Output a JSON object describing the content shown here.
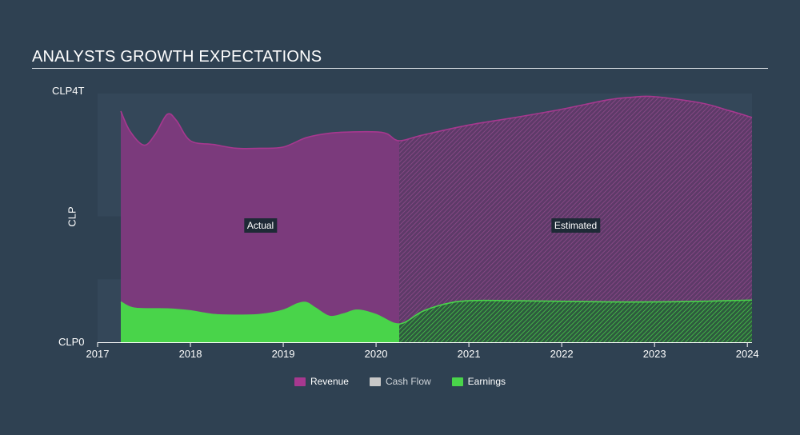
{
  "title": "ANALYSTS GROWTH EXPECTATIONS",
  "chart_data": {
    "type": "area",
    "currency": "CLP",
    "ylabel": "CLP",
    "ytick_labels": {
      "max": "CLP4T",
      "min": "CLP0"
    },
    "ylim": [
      0,
      4
    ],
    "xlim": [
      2017.0,
      2024.05
    ],
    "x_ticks": [
      {
        "value": 2017,
        "label": "2017"
      },
      {
        "value": 2018,
        "label": "2018"
      },
      {
        "value": 2019,
        "label": "2019"
      },
      {
        "value": 2020,
        "label": "2020"
      },
      {
        "value": 2021,
        "label": "2021"
      },
      {
        "value": 2022,
        "label": "2022"
      },
      {
        "value": 2023,
        "label": "2023"
      },
      {
        "value": 2024,
        "label": "2024"
      }
    ],
    "actual_end_x": 2020.25,
    "regions": {
      "actual": "Actual",
      "estimated": "Estimated"
    },
    "series": [
      {
        "name": "Revenue",
        "color": "#a7388f",
        "points": [
          [
            2017.25,
            3.67
          ],
          [
            2017.35,
            3.35
          ],
          [
            2017.5,
            3.13
          ],
          [
            2017.62,
            3.3
          ],
          [
            2017.75,
            3.62
          ],
          [
            2017.85,
            3.52
          ],
          [
            2018.0,
            3.2
          ],
          [
            2018.25,
            3.14
          ],
          [
            2018.5,
            3.08
          ],
          [
            2018.75,
            3.08
          ],
          [
            2019.0,
            3.1
          ],
          [
            2019.25,
            3.25
          ],
          [
            2019.5,
            3.32
          ],
          [
            2019.75,
            3.34
          ],
          [
            2020.0,
            3.34
          ],
          [
            2020.12,
            3.31
          ],
          [
            2020.25,
            3.2
          ],
          [
            2020.5,
            3.29
          ],
          [
            2021.0,
            3.45
          ],
          [
            2021.5,
            3.57
          ],
          [
            2022.0,
            3.7
          ],
          [
            2022.5,
            3.85
          ],
          [
            2022.75,
            3.89
          ],
          [
            2023.0,
            3.9
          ],
          [
            2023.5,
            3.8
          ],
          [
            2023.8,
            3.68
          ],
          [
            2024.05,
            3.57
          ]
        ]
      },
      {
        "name": "Cash Flow",
        "color": "#c8c8c8",
        "points": []
      },
      {
        "name": "Earnings",
        "color": "#49d44a",
        "points": [
          [
            2017.25,
            0.64
          ],
          [
            2017.4,
            0.54
          ],
          [
            2017.75,
            0.53
          ],
          [
            2018.0,
            0.5
          ],
          [
            2018.25,
            0.44
          ],
          [
            2018.5,
            0.43
          ],
          [
            2018.75,
            0.44
          ],
          [
            2019.0,
            0.51
          ],
          [
            2019.15,
            0.61
          ],
          [
            2019.25,
            0.63
          ],
          [
            2019.35,
            0.54
          ],
          [
            2019.5,
            0.41
          ],
          [
            2019.65,
            0.45
          ],
          [
            2019.8,
            0.51
          ],
          [
            2020.0,
            0.44
          ],
          [
            2020.25,
            0.29
          ],
          [
            2020.5,
            0.49
          ],
          [
            2020.75,
            0.61
          ],
          [
            2021.0,
            0.66
          ],
          [
            2021.5,
            0.66
          ],
          [
            2022.0,
            0.65
          ],
          [
            2022.5,
            0.64
          ],
          [
            2023.0,
            0.64
          ],
          [
            2023.5,
            0.65
          ],
          [
            2024.05,
            0.67
          ]
        ]
      }
    ],
    "legend": {
      "position": "bottom-center"
    },
    "grid": false
  },
  "colors": {
    "background": "#2f4152",
    "plot_band": "#344759",
    "axis": "#ffffff"
  }
}
